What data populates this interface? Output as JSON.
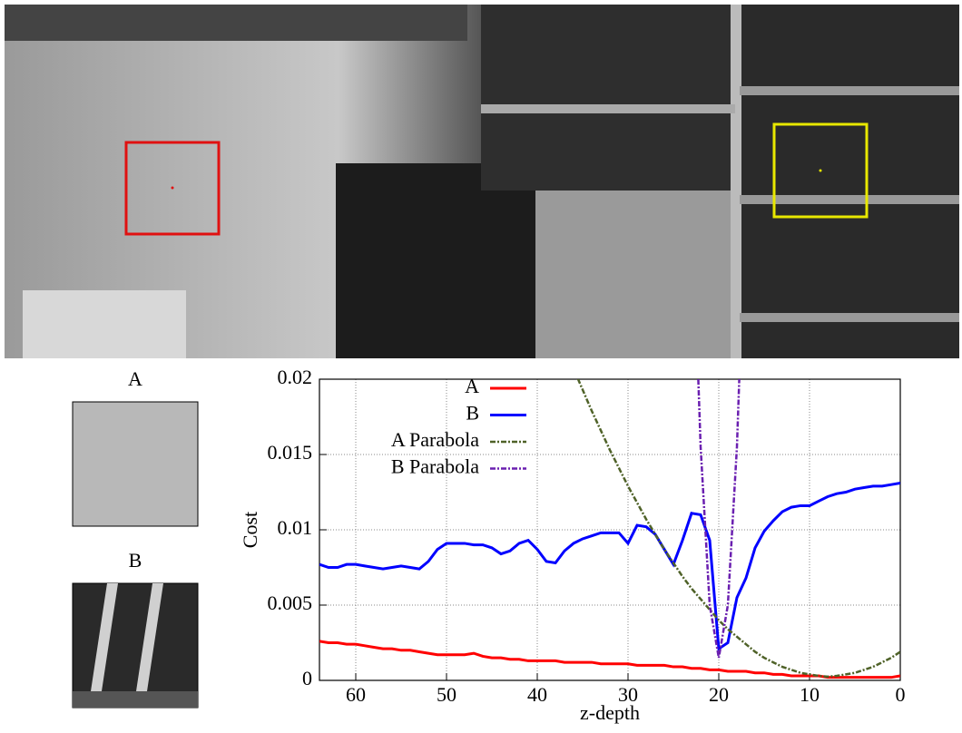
{
  "patches": {
    "labels": [
      "A",
      "B"
    ]
  },
  "chart_data": {
    "type": "line",
    "x_label": "z-depth",
    "y_label": "Cost",
    "x": [
      64,
      63,
      62,
      61,
      60,
      59,
      58,
      57,
      56,
      55,
      54,
      53,
      52,
      51,
      50,
      49,
      48,
      47,
      46,
      45,
      44,
      43,
      42,
      41,
      40,
      39,
      38,
      37,
      36,
      35,
      34,
      33,
      32,
      31,
      30,
      29,
      28,
      27,
      26,
      25,
      24,
      23,
      22,
      21,
      20,
      19,
      18,
      17,
      16,
      15,
      14,
      13,
      12,
      11,
      10,
      9,
      8,
      7,
      6,
      5,
      4,
      3,
      2,
      1,
      0
    ],
    "series": [
      {
        "name": "A",
        "color": "#ff0000",
        "dash": "none",
        "width": 3,
        "values": [
          0.0026,
          0.0025,
          0.0025,
          0.0024,
          0.0024,
          0.0023,
          0.0022,
          0.0021,
          0.0021,
          0.002,
          0.002,
          0.0019,
          0.0018,
          0.0017,
          0.0017,
          0.0017,
          0.0017,
          0.0018,
          0.0016,
          0.0015,
          0.0015,
          0.0014,
          0.0014,
          0.0013,
          0.0013,
          0.0013,
          0.0013,
          0.0012,
          0.0012,
          0.0012,
          0.0012,
          0.0011,
          0.0011,
          0.0011,
          0.0011,
          0.001,
          0.001,
          0.001,
          0.001,
          0.0009,
          0.0009,
          0.0008,
          0.0008,
          0.0007,
          0.0007,
          0.0006,
          0.0006,
          0.0006,
          0.0005,
          0.0005,
          0.0004,
          0.0004,
          0.0003,
          0.0003,
          0.0003,
          0.0003,
          0.0002,
          0.0002,
          0.0002,
          0.0002,
          0.0002,
          0.0002,
          0.0002,
          0.0002,
          0.0003
        ]
      },
      {
        "name": "B",
        "color": "#0000ff",
        "dash": "none",
        "width": 3,
        "values": [
          0.0077,
          0.0075,
          0.0075,
          0.0077,
          0.0077,
          0.0076,
          0.0075,
          0.0074,
          0.0075,
          0.0076,
          0.0075,
          0.0074,
          0.0079,
          0.0087,
          0.0091,
          0.0091,
          0.0091,
          0.009,
          0.009,
          0.0088,
          0.0084,
          0.0086,
          0.0091,
          0.0093,
          0.0087,
          0.0079,
          0.0078,
          0.0086,
          0.0091,
          0.0094,
          0.0096,
          0.0098,
          0.0098,
          0.0098,
          0.0091,
          0.0103,
          0.0102,
          0.0097,
          0.0087,
          0.0077,
          0.0093,
          0.0111,
          0.011,
          0.0093,
          0.0021,
          0.0025,
          0.0055,
          0.0068,
          0.0088,
          0.0099,
          0.0106,
          0.0112,
          0.0115,
          0.0116,
          0.0116,
          0.0119,
          0.0122,
          0.0124,
          0.0125,
          0.0127,
          0.0128,
          0.0129,
          0.0129,
          0.013,
          0.0131
        ]
      },
      {
        "name": "A Parabola",
        "color": "#4f6228",
        "dash": "6,2,2,2",
        "width": 2.5,
        "values": [
          null,
          null,
          null,
          null,
          null,
          null,
          null,
          null,
          null,
          null,
          null,
          null,
          null,
          null,
          null,
          null,
          null,
          null,
          null,
          null,
          null,
          null,
          null,
          null,
          null,
          null,
          null,
          null,
          0.0207,
          0.0193,
          0.0179,
          0.0166,
          0.0153,
          0.0141,
          0.0129,
          0.0118,
          0.0107,
          0.0097,
          0.0087,
          0.0078,
          0.0069,
          0.0061,
          0.0054,
          0.0047,
          0.004,
          0.0034,
          0.0029,
          0.0024,
          0.0019,
          0.0015,
          0.0012,
          0.0009,
          0.0007,
          0.0005,
          0.0004,
          0.0003,
          0.00025,
          0.0003,
          0.0004,
          0.0005,
          0.0007,
          0.0009,
          0.0012,
          0.0015,
          0.0019
        ]
      },
      {
        "name": "B Parabola",
        "color": "#6a1fb0",
        "dash": "6,2,2,2",
        "width": 2.5,
        "values": [
          null,
          null,
          null,
          null,
          null,
          null,
          null,
          null,
          null,
          null,
          null,
          null,
          null,
          null,
          null,
          null,
          null,
          null,
          null,
          null,
          null,
          null,
          null,
          null,
          null,
          null,
          null,
          null,
          null,
          null,
          null,
          null,
          null,
          null,
          null,
          null,
          null,
          null,
          null,
          null,
          null,
          0.033,
          0.0155,
          0.005,
          0.0015,
          0.005,
          0.0155,
          0.033,
          null,
          null,
          null,
          null,
          null,
          null,
          null,
          null,
          null,
          null,
          null,
          null,
          null,
          null,
          null,
          null,
          null
        ]
      }
    ],
    "xlim": [
      64,
      0
    ],
    "xticks": [
      60,
      50,
      40,
      30,
      20,
      10,
      0
    ],
    "ylim": [
      0,
      0.02
    ],
    "yticks": [
      0,
      0.005,
      0.01,
      0.015,
      0.02
    ],
    "grid": true
  }
}
